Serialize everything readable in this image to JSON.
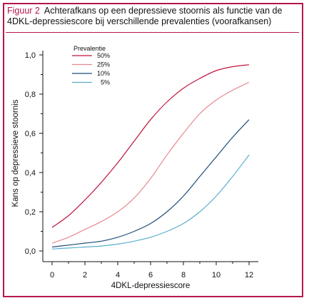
{
  "figure": {
    "label": "Figuur 2",
    "caption": "Achterafkans op een depressieve stoornis als functie van de 4DKL-depressiescore bij verschillende prevalenties (voorafkansen)"
  },
  "colors": {
    "frame": "#b5174a"
  },
  "chart_data": {
    "type": "line",
    "xlabel": "4DKL-depressiescore",
    "ylabel": "Kans op depressieve stoornis",
    "xlim": [
      0,
      12
    ],
    "ylim": [
      0,
      1.0
    ],
    "x_ticks": [
      "0",
      "2",
      "4",
      "6",
      "8",
      "10",
      "12"
    ],
    "y_ticks": [
      "0,0",
      "0,2",
      "0,4",
      "0,6",
      "0,8",
      "1,0"
    ],
    "legend_title": "Prevalentie",
    "legend_position": "top-left",
    "x": [
      0,
      1,
      2,
      3,
      4,
      5,
      6,
      7,
      8,
      9,
      10,
      11,
      12
    ],
    "series": [
      {
        "name": "50%",
        "color": "#c0143c",
        "values": [
          0.12,
          0.18,
          0.26,
          0.35,
          0.45,
          0.56,
          0.67,
          0.76,
          0.83,
          0.88,
          0.92,
          0.94,
          0.95
        ]
      },
      {
        "name": "25%",
        "color": "#e8898f",
        "values": [
          0.04,
          0.07,
          0.11,
          0.15,
          0.2,
          0.27,
          0.37,
          0.49,
          0.6,
          0.7,
          0.77,
          0.82,
          0.86
        ]
      },
      {
        "name": "10%",
        "color": "#1f4d7a",
        "values": [
          0.02,
          0.03,
          0.04,
          0.05,
          0.07,
          0.1,
          0.14,
          0.2,
          0.28,
          0.38,
          0.48,
          0.58,
          0.67
        ]
      },
      {
        "name": "5%",
        "color": "#5aaecf",
        "values": [
          0.01,
          0.015,
          0.02,
          0.025,
          0.035,
          0.05,
          0.07,
          0.1,
          0.14,
          0.2,
          0.28,
          0.38,
          0.49
        ]
      }
    ]
  }
}
